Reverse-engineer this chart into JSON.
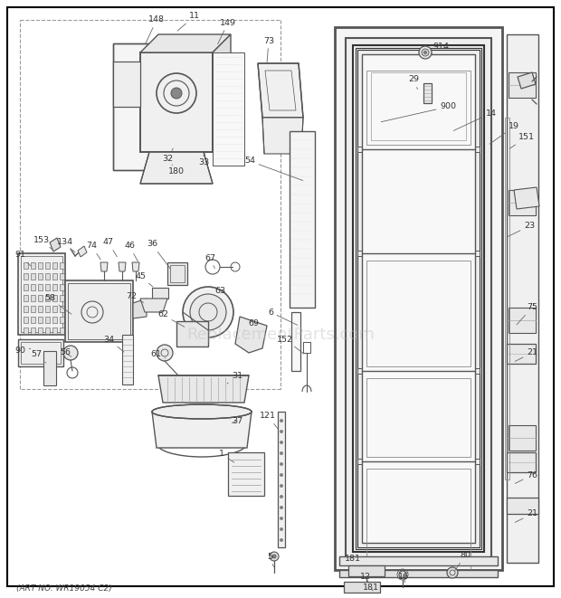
{
  "footer": "(ART NO. WR19054 C2)",
  "bg_color": "#ffffff",
  "line_color": "#555555",
  "text_color": "#333333",
  "watermark": "ReplacementParts.com",
  "watermark_color": "#bbbbbb",
  "watermark_alpha": 0.4,
  "fig_w": 6.2,
  "fig_h": 6.61,
  "dpi": 100
}
